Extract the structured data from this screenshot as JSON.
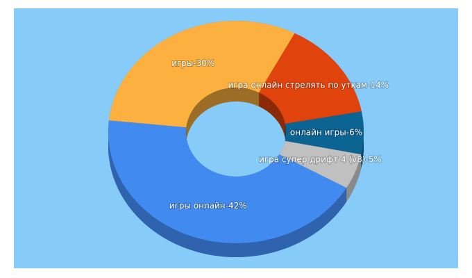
{
  "chart_data": {
    "type": "pie",
    "value_labels": [
      "игры-30%",
      "игра онлайн стрелять по уткам-14%",
      "онлайн игры-6%",
      "игра супер дрифт 4 (v8)-5%",
      "игры онлайн-42%"
    ],
    "values": [
      30,
      14,
      6,
      5,
      42
    ],
    "colors": [
      "#fbb03f",
      "#e0430b",
      "#0c6493",
      "#c0c0c0",
      "#418af0"
    ]
  }
}
